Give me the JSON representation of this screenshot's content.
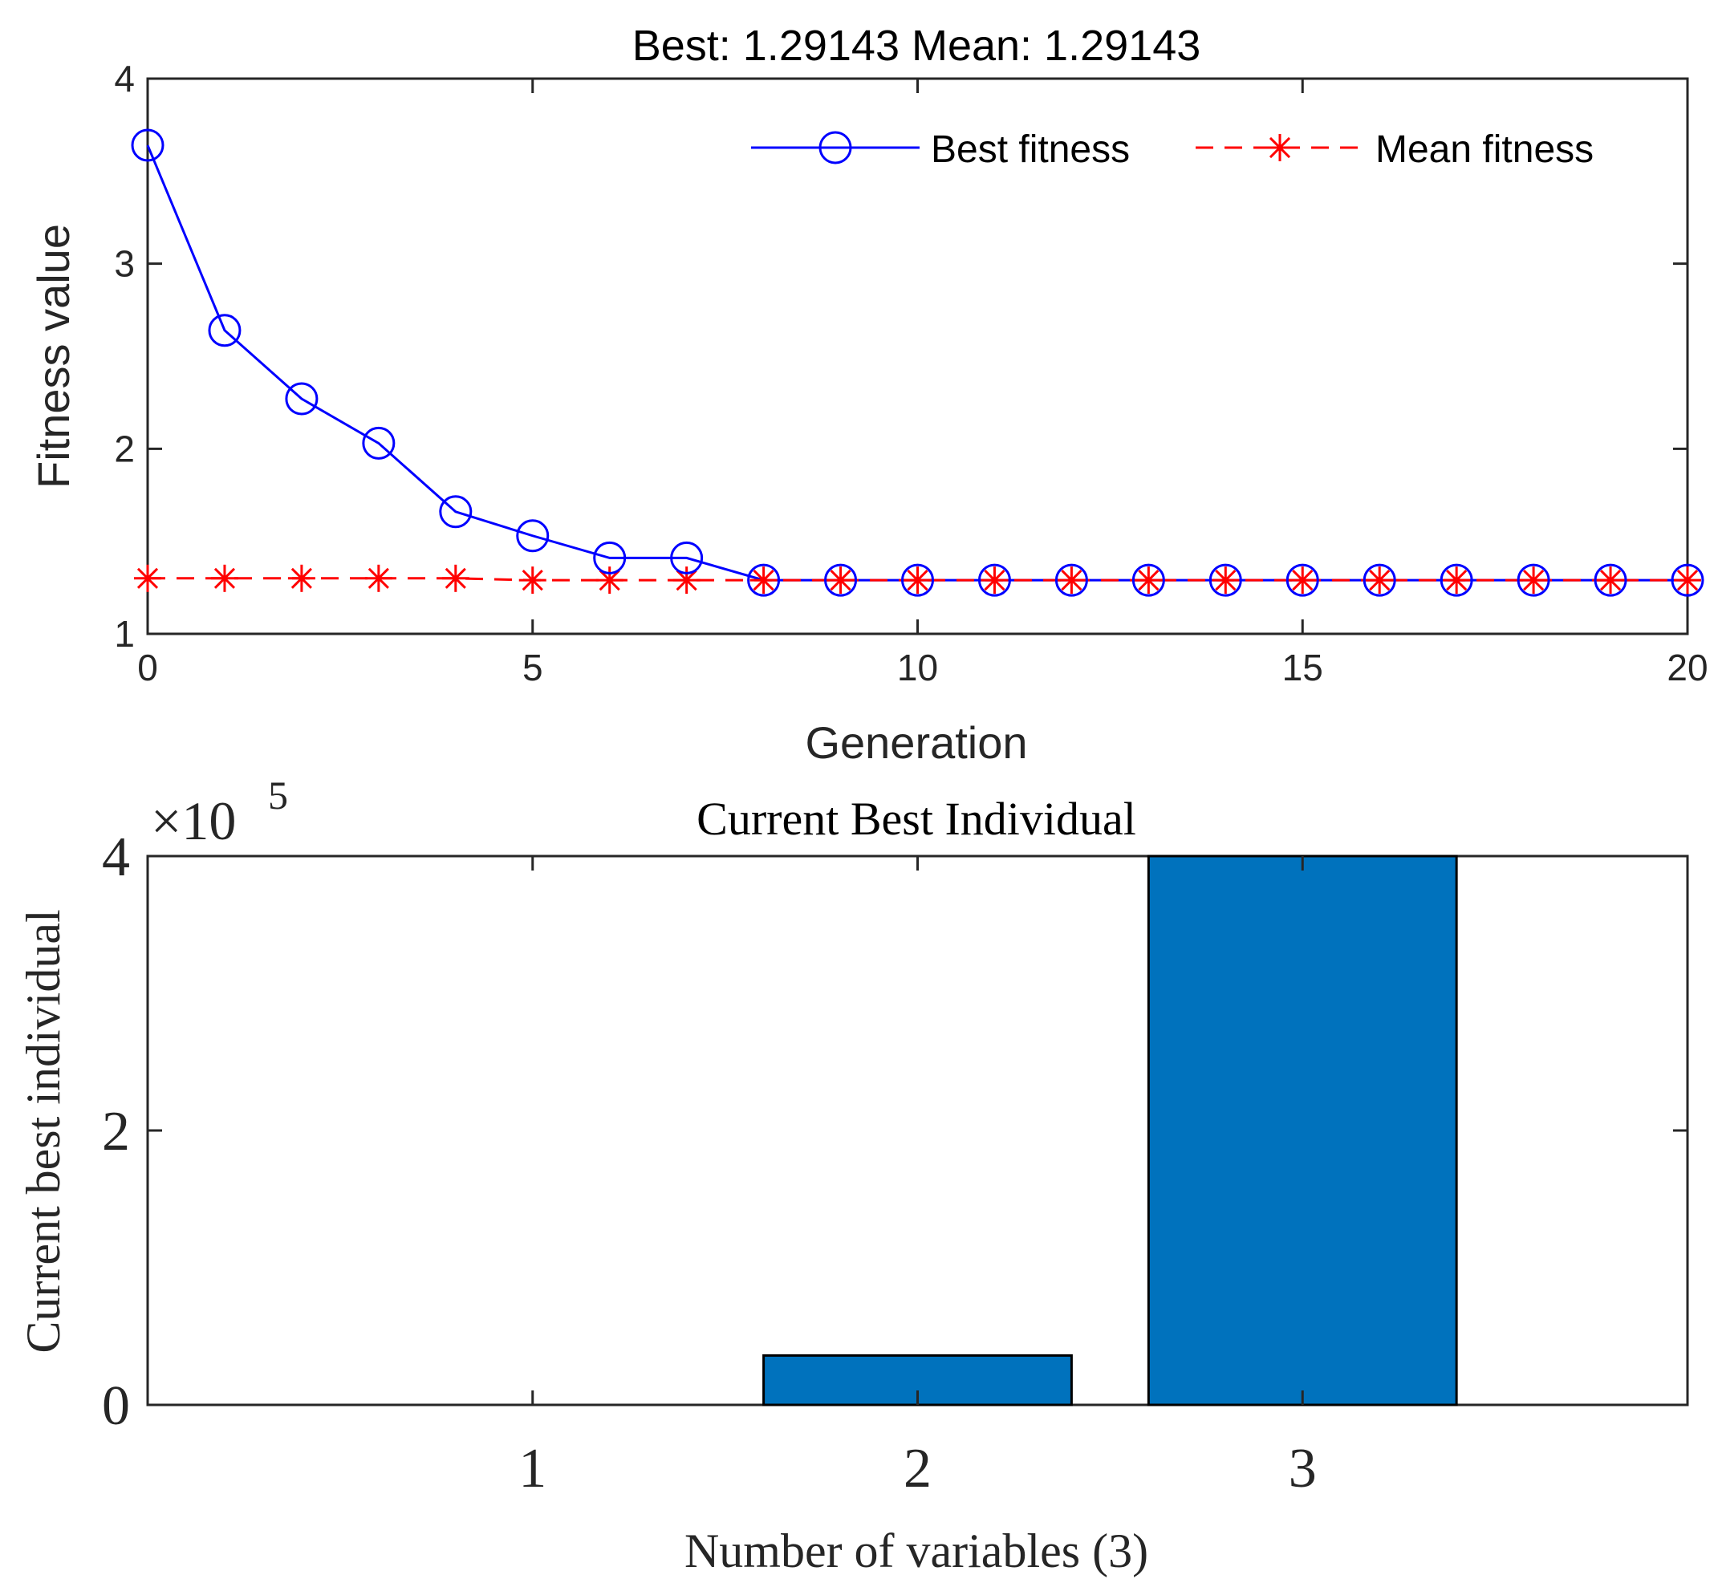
{
  "chart_data": [
    {
      "type": "line",
      "title": "Best: 1.29143 Mean: 1.29143",
      "xlabel": "Generation",
      "ylabel": "Fitness value",
      "xlim": [
        0,
        20
      ],
      "ylim": [
        1,
        4
      ],
      "xticks": [
        0,
        5,
        10,
        15,
        20
      ],
      "yticks": [
        1,
        2,
        3,
        4
      ],
      "grid": false,
      "legend_position": "top-right",
      "x": [
        0,
        1,
        2,
        3,
        4,
        5,
        6,
        7,
        8,
        9,
        10,
        11,
        12,
        13,
        14,
        15,
        16,
        17,
        18,
        19,
        20
      ],
      "series": [
        {
          "name": "Best fitness",
          "color": "#0000ff",
          "line": "solid",
          "marker": "circle",
          "values": [
            3.64,
            2.64,
            2.27,
            2.03,
            1.66,
            1.53,
            1.41,
            1.41,
            1.29,
            1.29,
            1.29,
            1.29,
            1.29,
            1.29,
            1.29,
            1.29,
            1.29,
            1.29,
            1.29,
            1.29,
            1.29
          ]
        },
        {
          "name": "Mean fitness",
          "color": "#ff0000",
          "line": "dashed",
          "marker": "asterisk",
          "values": [
            1.3,
            1.3,
            1.3,
            1.3,
            1.3,
            1.29,
            1.29,
            1.29,
            1.29,
            1.29,
            1.29,
            1.29,
            1.29,
            1.29,
            1.29,
            1.29,
            1.29,
            1.29,
            1.29,
            1.29,
            1.29
          ]
        }
      ]
    },
    {
      "type": "bar",
      "title": "Current Best Individual",
      "xlabel": "Number of variables (3)",
      "ylabel": "Current best individual",
      "exponent_label": "×10",
      "exponent_power": "5",
      "scale": 100000,
      "categories": [
        "1",
        "2",
        "3"
      ],
      "values": [
        0,
        36000,
        400000
      ],
      "xlim": [
        0,
        4
      ],
      "ylim": [
        0,
        400000
      ],
      "yticks": [
        0,
        2,
        4
      ],
      "color": "#0072bd"
    }
  ]
}
